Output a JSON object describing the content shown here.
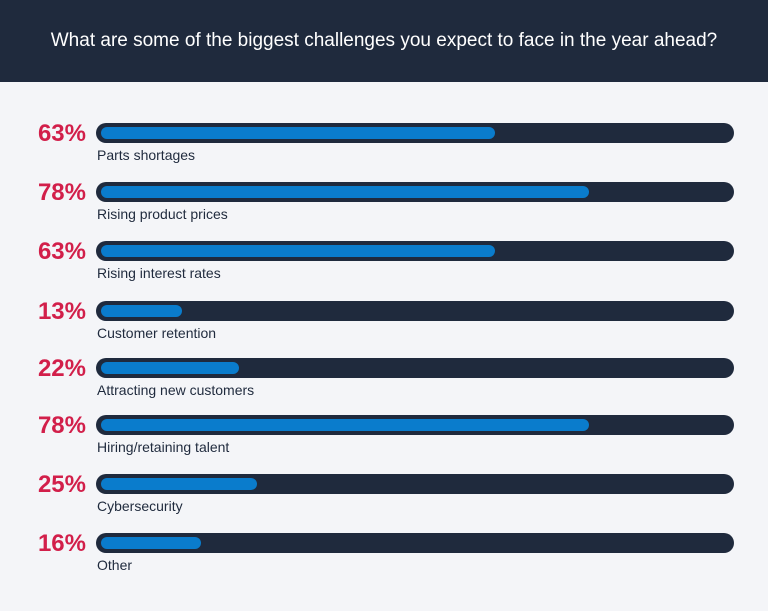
{
  "chart_data": {
    "type": "bar",
    "orientation": "horizontal",
    "title": "What are some of the biggest challenges you expect to face in the year ahead?",
    "categories": [
      "Parts shortages",
      "Rising product prices",
      "Rising interest rates",
      "Customer retention",
      "Attracting new customers",
      "Hiring/retaining talent",
      "Cybersecurity",
      "Other"
    ],
    "values": [
      63,
      78,
      63,
      13,
      22,
      78,
      25,
      16
    ],
    "labels": [
      "63%",
      "78%",
      "63%",
      "13%",
      "22%",
      "78%",
      "25%",
      "16%"
    ],
    "xlim": [
      0,
      100
    ],
    "grid": false,
    "colors": {
      "header": "#1f2a3d",
      "percent": "#d21f4a",
      "fill": "#0a7ccc",
      "track": "#1f2a3d"
    }
  }
}
